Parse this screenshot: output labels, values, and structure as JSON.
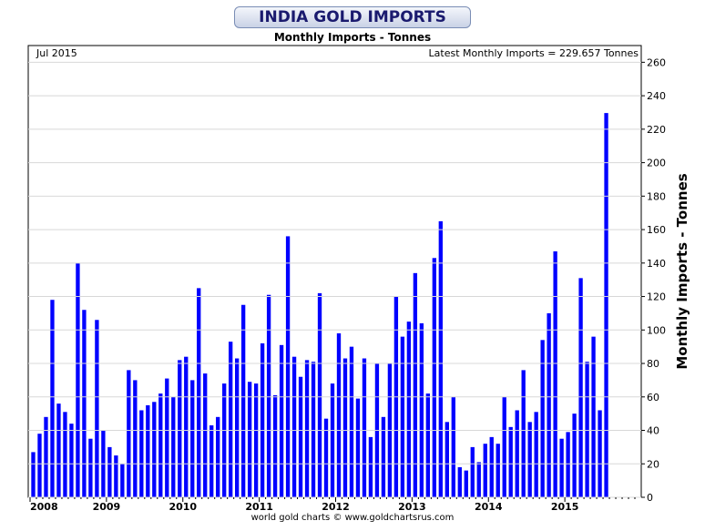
{
  "header": {
    "title": "INDIA GOLD IMPORTS",
    "subtitle": "Monthly Imports - Tonnes",
    "footer": "world gold charts © www.goldchartsrus.com"
  },
  "chart_data": {
    "type": "bar",
    "date_label": "Jul 2015",
    "latest_label": "Latest Monthly Imports = 229.657 Tonnes",
    "ylabel": "Monthly Imports - Tonnes",
    "ylim": [
      0,
      270
    ],
    "yticks": [
      0,
      20,
      40,
      60,
      80,
      100,
      120,
      140,
      160,
      180,
      200,
      220,
      240,
      260
    ],
    "x_start": "2008-01",
    "x_ticks": [
      "2008",
      "2009",
      "2010",
      "2011",
      "2012",
      "2013",
      "2014",
      "2015"
    ],
    "bar_color": "#0000ff",
    "values": [
      27,
      38,
      48,
      118,
      56,
      51,
      44,
      140,
      112,
      35,
      106,
      40,
      30,
      25,
      20,
      76,
      70,
      52,
      55,
      57,
      62,
      71,
      60,
      82,
      84,
      70,
      125,
      74,
      43,
      48,
      68,
      93,
      83,
      115,
      69,
      68,
      92,
      121,
      61,
      91,
      156,
      84,
      72,
      82,
      81,
      122,
      47,
      68,
      98,
      83,
      90,
      59,
      83,
      36,
      80,
      48,
      80,
      120,
      96,
      105,
      134,
      104,
      62,
      143,
      165,
      45,
      60,
      18,
      16,
      30,
      21,
      32,
      36,
      32,
      60,
      42,
      52,
      76,
      45,
      51,
      94,
      110,
      147,
      35,
      39,
      50,
      131,
      81,
      96,
      52,
      229.657
    ]
  }
}
